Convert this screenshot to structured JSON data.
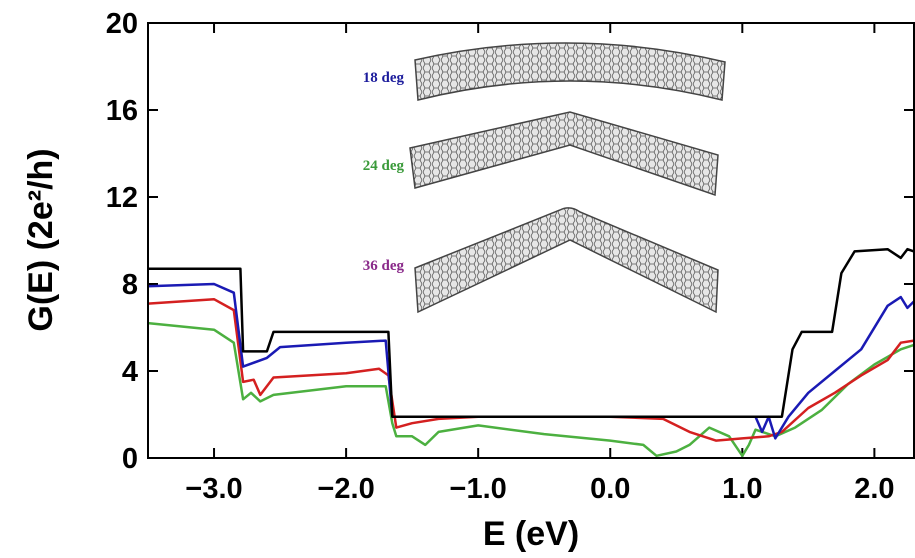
{
  "chart_data": {
    "type": "line",
    "xlabel": "E (eV)",
    "ylabel": "G(E) (2e²/h)",
    "xlim": [
      -3.5,
      2.3
    ],
    "ylim": [
      0,
      20
    ],
    "xticks": [
      {
        "value": -3,
        "label": "−3.0"
      },
      {
        "value": -2,
        "label": "−2.0"
      },
      {
        "value": -1,
        "label": "−1.0"
      },
      {
        "value": 0,
        "label": "0.0"
      },
      {
        "value": 1,
        "label": "1.0"
      },
      {
        "value": 2,
        "label": "2.0"
      }
    ],
    "yticks": [
      0,
      4,
      8,
      12,
      16,
      20
    ],
    "annotations": [
      {
        "text": "18 deg",
        "color": "#1c1c9c"
      },
      {
        "text": "24 deg",
        "color": "#3a9a3a"
      },
      {
        "text": "36 deg",
        "color": "#8a2a8a"
      }
    ],
    "series": [
      {
        "color": "#000000",
        "x": [
          -3.5,
          -2.8,
          -2.78,
          -2.6,
          -2.55,
          -1.68,
          -1.65,
          1.3,
          1.38,
          1.45,
          1.68,
          1.75,
          1.85,
          2.1,
          2.2,
          2.25,
          2.3
        ],
        "values": [
          8.7,
          8.7,
          4.9,
          4.9,
          5.8,
          5.8,
          1.9,
          1.9,
          5.0,
          5.8,
          5.8,
          8.5,
          9.5,
          9.6,
          9.2,
          9.6,
          9.5
        ]
      },
      {
        "color": "#1a1ab4",
        "x": [
          -3.5,
          -3.0,
          -2.85,
          -2.78,
          -2.6,
          -2.5,
          -2.0,
          -1.7,
          -1.65,
          1.1,
          1.15,
          1.2,
          1.25,
          1.35,
          1.5,
          1.7,
          1.9,
          2.1,
          2.2,
          2.25,
          2.3
        ],
        "values": [
          7.9,
          8.0,
          7.6,
          4.2,
          4.6,
          5.1,
          5.3,
          5.4,
          1.9,
          1.9,
          1.2,
          1.9,
          0.9,
          1.9,
          3.0,
          4.0,
          5.0,
          7.0,
          7.4,
          6.9,
          7.2
        ]
      },
      {
        "color": "#d42020",
        "x": [
          -3.5,
          -3.0,
          -2.85,
          -2.78,
          -2.7,
          -2.65,
          -2.55,
          -2.0,
          -1.75,
          -1.68,
          -1.62,
          -1.5,
          -1.3,
          -1.0,
          0.0,
          0.4,
          0.6,
          0.8,
          1.0,
          1.2,
          1.3,
          1.5,
          1.7,
          1.9,
          2.1,
          2.2,
          2.3
        ],
        "values": [
          7.1,
          7.3,
          6.8,
          3.5,
          3.6,
          2.9,
          3.7,
          3.9,
          4.1,
          3.8,
          1.4,
          1.6,
          1.8,
          1.9,
          1.9,
          1.8,
          1.2,
          0.8,
          0.9,
          1.0,
          1.2,
          2.3,
          3.0,
          3.8,
          4.5,
          5.3,
          5.4
        ]
      },
      {
        "color": "#4cb040",
        "x": [
          -3.5,
          -3.0,
          -2.85,
          -2.78,
          -2.72,
          -2.65,
          -2.55,
          -2.0,
          -1.7,
          -1.65,
          -1.62,
          -1.5,
          -1.4,
          -1.3,
          -1.0,
          -0.5,
          0.0,
          0.25,
          0.35,
          0.5,
          0.6,
          0.75,
          0.9,
          1.0,
          1.05,
          1.1,
          1.25,
          1.4,
          1.6,
          1.8,
          2.0,
          2.2,
          2.3
        ],
        "values": [
          6.2,
          5.9,
          5.3,
          2.7,
          3.0,
          2.6,
          2.9,
          3.3,
          3.3,
          1.6,
          1.0,
          1.0,
          0.6,
          1.2,
          1.5,
          1.1,
          0.8,
          0.6,
          0.1,
          0.3,
          0.6,
          1.4,
          1.0,
          0.1,
          0.6,
          1.3,
          1.0,
          1.4,
          2.2,
          3.4,
          4.3,
          5.0,
          5.2
        ]
      }
    ]
  }
}
